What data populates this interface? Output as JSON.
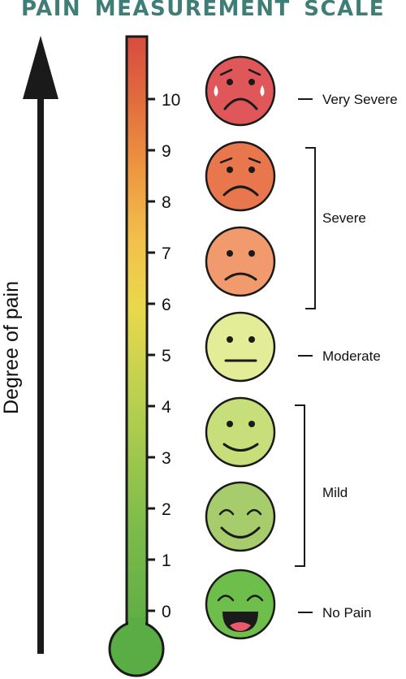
{
  "title": "PAIN MEASUREMENT SCALE",
  "axis_label": "Degree of pain",
  "scale": {
    "min": 0,
    "max": 10,
    "ticks": [
      "0",
      "1",
      "2",
      "3",
      "4",
      "5",
      "6",
      "7",
      "8",
      "9",
      "10"
    ],
    "gradient_colors": [
      "#5aac44",
      "#7cbb4a",
      "#b4cf4e",
      "#ead84c",
      "#f2c14a",
      "#ee9640",
      "#e06a3d",
      "#d94b41"
    ]
  },
  "categories": [
    {
      "label": "Very Severe",
      "value": "10"
    },
    {
      "label": "Severe",
      "range": [
        "6",
        "9"
      ]
    },
    {
      "label": "Moderate",
      "value": "5"
    },
    {
      "label": "Mild",
      "range": [
        "1",
        "4"
      ]
    },
    {
      "label": "No Pain",
      "value": "0"
    }
  ],
  "faces": [
    {
      "name": "very-severe-face-icon",
      "color": "#e0575a"
    },
    {
      "name": "severe-face-icon",
      "color": "#e9774d"
    },
    {
      "name": "uncomfortable-face-icon",
      "color": "#f09a6d"
    },
    {
      "name": "neutral-face-icon",
      "color": "#e3ec96"
    },
    {
      "name": "smile-face-icon",
      "color": "#c6df7a"
    },
    {
      "name": "content-face-icon",
      "color": "#a6cc6c"
    },
    {
      "name": "laughing-face-icon",
      "color": "#6ebe4b"
    }
  ],
  "colors": {
    "title": "#3f7d77",
    "outline": "#1a1a1a"
  }
}
